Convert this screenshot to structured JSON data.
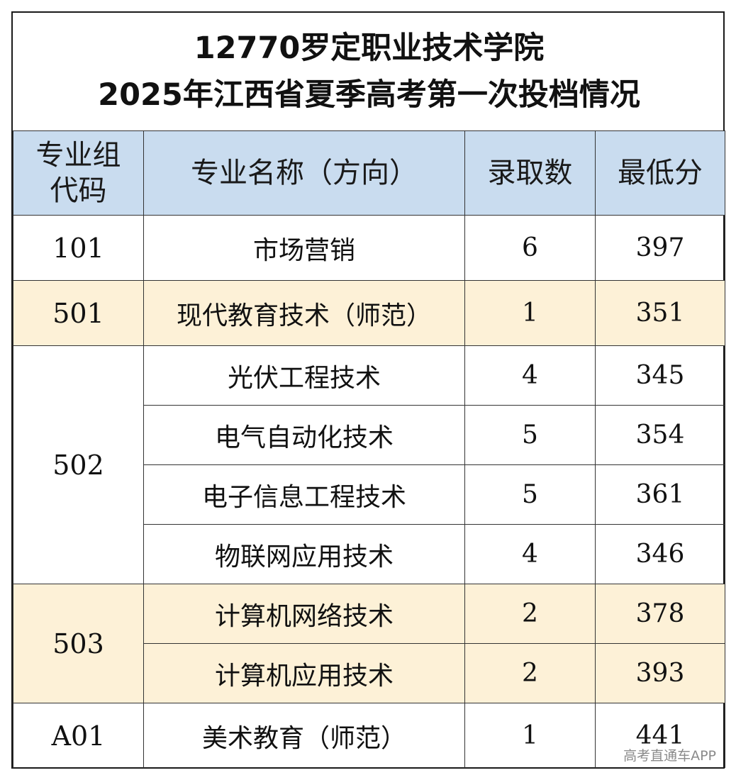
{
  "title": {
    "line1": "12770罗定职业技术学院",
    "line2": "2025年江西省夏季高考第一次投档情况"
  },
  "headers": {
    "group_code_l1": "专业组",
    "group_code_l2": "代码",
    "major_name": "专业名称（方向）",
    "admitted": "录取数",
    "min_score": "最低分"
  },
  "groups": [
    {
      "code": "101",
      "rows": [
        {
          "major": "市场营销",
          "admitted": "6",
          "min_score": "397"
        }
      ]
    },
    {
      "code": "501",
      "rows": [
        {
          "major": "现代教育技术（师范）",
          "admitted": "1",
          "min_score": "351"
        }
      ]
    },
    {
      "code": "502",
      "rows": [
        {
          "major": "光伏工程技术",
          "admitted": "4",
          "min_score": "345"
        },
        {
          "major": "电气自动化技术",
          "admitted": "5",
          "min_score": "354"
        },
        {
          "major": "电子信息工程技术",
          "admitted": "5",
          "min_score": "361"
        },
        {
          "major": "物联网应用技术",
          "admitted": "4",
          "min_score": "346"
        }
      ]
    },
    {
      "code": "503",
      "rows": [
        {
          "major": "计算机网络技术",
          "admitted": "2",
          "min_score": "378"
        },
        {
          "major": "计算机应用技术",
          "admitted": "2",
          "min_score": "393"
        }
      ]
    },
    {
      "code": "A01",
      "rows": [
        {
          "major": "美术教育（师范）",
          "admitted": "1",
          "min_score": "441"
        }
      ]
    }
  ],
  "colors": {
    "header_bg": "#c9dcef",
    "highlight_bg": "#fdf1d7",
    "border": "#333333"
  },
  "watermark": "高考直通车APP"
}
